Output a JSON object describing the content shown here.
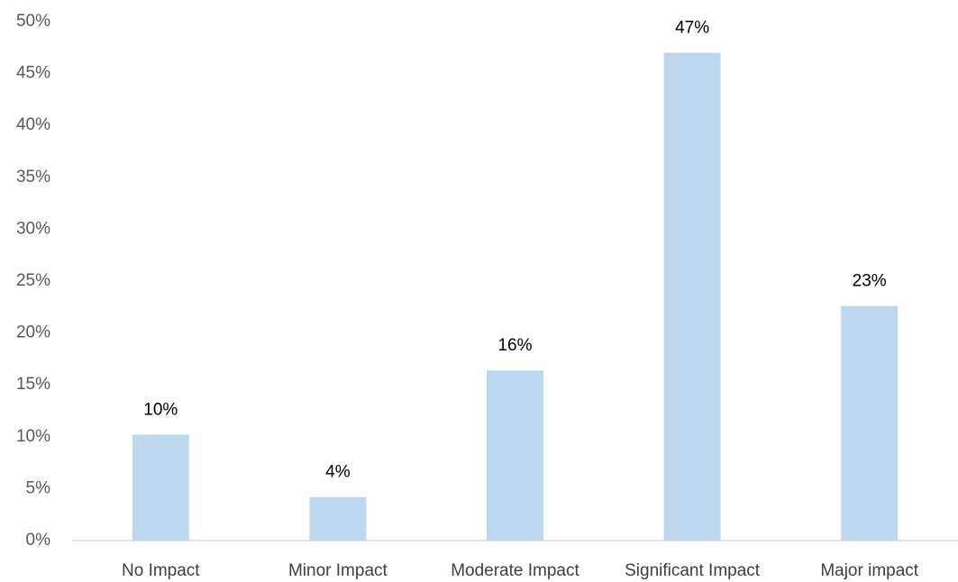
{
  "chart_data": {
    "type": "bar",
    "categories": [
      "No Impact",
      "Minor Impact",
      "Moderate Impact",
      "Significant Impact",
      "Major impact"
    ],
    "values": [
      10.2,
      4.2,
      16.4,
      47,
      22.6
    ],
    "value_labels": [
      "10%",
      "4%",
      "16%",
      "47%",
      "23%"
    ],
    "color": "#bdd7ee",
    "ylim": [
      0,
      50
    ],
    "yticks": [
      {
        "value": 0,
        "label": "0%"
      },
      {
        "value": 5,
        "label": "5%"
      },
      {
        "value": 10,
        "label": "10%"
      },
      {
        "value": 15,
        "label": "15%"
      },
      {
        "value": 20,
        "label": "20%"
      },
      {
        "value": 25,
        "label": "25%"
      },
      {
        "value": 30,
        "label": "30%"
      },
      {
        "value": 35,
        "label": "35%"
      },
      {
        "value": 40,
        "label": "40%"
      },
      {
        "value": 45,
        "label": "45%"
      },
      {
        "value": 50,
        "label": "50%"
      }
    ],
    "grid": false
  }
}
